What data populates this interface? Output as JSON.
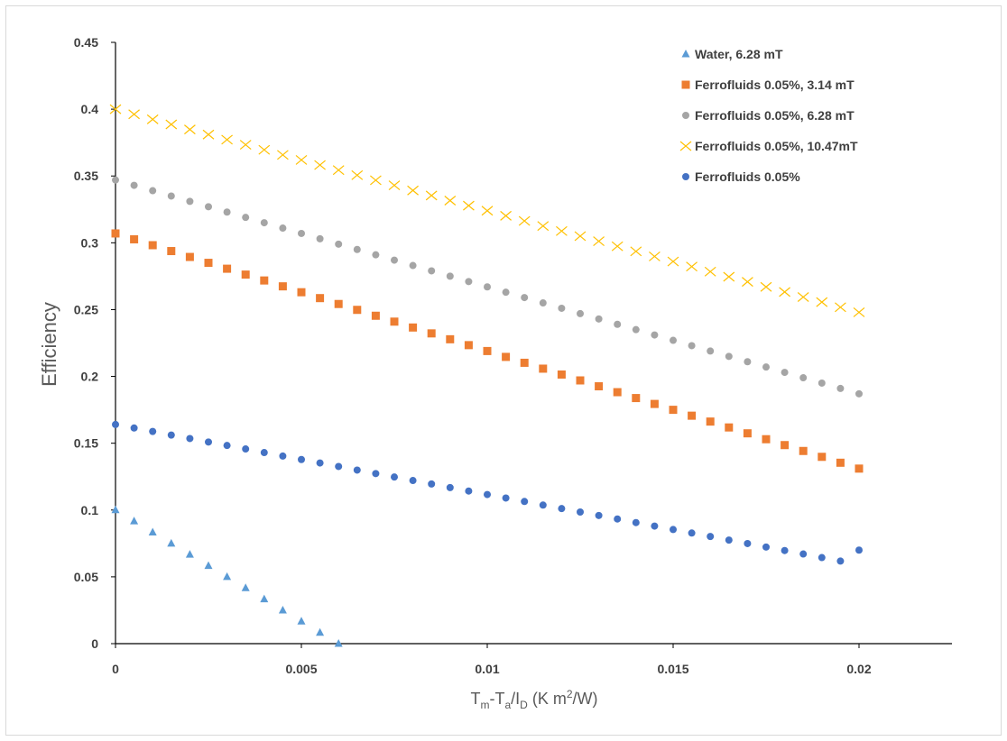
{
  "chart_data": {
    "type": "scatter",
    "title": "",
    "xlabel": {
      "main": "T",
      "sub1": "m",
      "mid": "-T",
      "sub2": "a",
      "mid2": "/I",
      "sub3": "D",
      "unit": " (K m",
      "sup": "2",
      "unit_end": "/W)"
    },
    "ylabel": "Efficiency",
    "xlim": [
      0,
      0.0225
    ],
    "ylim": [
      0,
      0.45
    ],
    "x_ticks": [
      0,
      0.005,
      0.01,
      0.015,
      0.02
    ],
    "x_tick_labels": [
      "0",
      "0.005",
      "0.01",
      "0.015",
      "0.02"
    ],
    "y_ticks": [
      0,
      0.05,
      0.1,
      0.15,
      0.2,
      0.25,
      0.3,
      0.35,
      0.4,
      0.45
    ],
    "y_tick_labels": [
      "0",
      "0.05",
      "0.1",
      "0.15",
      "0.2",
      "0.25",
      "0.3",
      "0.35",
      "0.4",
      "0.45"
    ],
    "grid": false,
    "legend_position": "top-right",
    "series": [
      {
        "name": "Water, 6.28 mT",
        "marker": "triangle",
        "color": "#5b9bd5",
        "x": [
          0,
          0.0005,
          0.001,
          0.0015,
          0.002,
          0.0025,
          0.003,
          0.0035,
          0.004,
          0.0045,
          0.005,
          0.0055,
          0.006
        ],
        "y": [
          0.1,
          0.0917,
          0.0833,
          0.075,
          0.0667,
          0.0583,
          0.05,
          0.0417,
          0.0333,
          0.025,
          0.0167,
          0.0083,
          0.0
        ]
      },
      {
        "name": "Ferrofluids 0.05%, 3.14 mT",
        "marker": "square",
        "color": "#ed7d31",
        "x": [
          0,
          0.0005,
          0.001,
          0.0015,
          0.002,
          0.0025,
          0.003,
          0.0035,
          0.004,
          0.0045,
          0.005,
          0.0055,
          0.006,
          0.0065,
          0.007,
          0.0075,
          0.008,
          0.0085,
          0.009,
          0.0095,
          0.01,
          0.0105,
          0.011,
          0.0115,
          0.012,
          0.0125,
          0.013,
          0.0135,
          0.014,
          0.0145,
          0.015,
          0.0155,
          0.016,
          0.0165,
          0.017,
          0.0175,
          0.018,
          0.0185,
          0.019,
          0.0195,
          0.02
        ],
        "y": [
          0.307,
          0.3026,
          0.2982,
          0.2938,
          0.2894,
          0.285,
          0.2806,
          0.2762,
          0.2718,
          0.2674,
          0.263,
          0.2586,
          0.2542,
          0.2498,
          0.2454,
          0.241,
          0.2366,
          0.2322,
          0.2278,
          0.2234,
          0.219,
          0.2146,
          0.2102,
          0.2058,
          0.2014,
          0.197,
          0.1926,
          0.1882,
          0.1838,
          0.1794,
          0.175,
          0.1706,
          0.1662,
          0.1618,
          0.1574,
          0.153,
          0.1486,
          0.1442,
          0.1398,
          0.1354,
          0.131
        ]
      },
      {
        "name": "Ferrofluids 0.05%, 6.28 mT",
        "marker": "circle",
        "color": "#a5a5a5",
        "x": [
          0,
          0.0005,
          0.001,
          0.0015,
          0.002,
          0.0025,
          0.003,
          0.0035,
          0.004,
          0.0045,
          0.005,
          0.0055,
          0.006,
          0.0065,
          0.007,
          0.0075,
          0.008,
          0.0085,
          0.009,
          0.0095,
          0.01,
          0.0105,
          0.011,
          0.0115,
          0.012,
          0.0125,
          0.013,
          0.0135,
          0.014,
          0.0145,
          0.015,
          0.0155,
          0.016,
          0.0165,
          0.017,
          0.0175,
          0.018,
          0.0185,
          0.019,
          0.0195,
          0.02
        ],
        "y": [
          0.347,
          0.343,
          0.339,
          0.335,
          0.331,
          0.327,
          0.323,
          0.319,
          0.315,
          0.311,
          0.307,
          0.303,
          0.299,
          0.295,
          0.291,
          0.287,
          0.283,
          0.279,
          0.275,
          0.271,
          0.267,
          0.263,
          0.259,
          0.255,
          0.251,
          0.247,
          0.243,
          0.239,
          0.235,
          0.231,
          0.227,
          0.223,
          0.219,
          0.215,
          0.211,
          0.207,
          0.203,
          0.199,
          0.195,
          0.191,
          0.187
        ]
      },
      {
        "name": "Ferrofluids 0.05%, 10.47mT",
        "marker": "x",
        "color": "#ffc000",
        "x": [
          0,
          0.0005,
          0.001,
          0.0015,
          0.002,
          0.0025,
          0.003,
          0.0035,
          0.004,
          0.0045,
          0.005,
          0.0055,
          0.006,
          0.0065,
          0.007,
          0.0075,
          0.008,
          0.0085,
          0.009,
          0.0095,
          0.01,
          0.0105,
          0.011,
          0.0115,
          0.012,
          0.0125,
          0.013,
          0.0135,
          0.014,
          0.0145,
          0.015,
          0.0155,
          0.016,
          0.0165,
          0.017,
          0.0175,
          0.018,
          0.0185,
          0.019,
          0.0195,
          0.02
        ],
        "y": [
          0.4,
          0.3962,
          0.3924,
          0.3886,
          0.3848,
          0.381,
          0.3772,
          0.3734,
          0.3696,
          0.3658,
          0.362,
          0.3582,
          0.3544,
          0.3506,
          0.3468,
          0.343,
          0.3392,
          0.3354,
          0.3316,
          0.3278,
          0.324,
          0.3202,
          0.3164,
          0.3126,
          0.3088,
          0.305,
          0.3012,
          0.2974,
          0.2936,
          0.2898,
          0.286,
          0.2822,
          0.2784,
          0.2746,
          0.2708,
          0.267,
          0.2632,
          0.2594,
          0.2556,
          0.2518,
          0.248
        ]
      },
      {
        "name": "Ferrofluids 0.05%",
        "marker": "circle",
        "color": "#4472c4",
        "x": [
          0,
          0.0005,
          0.001,
          0.0015,
          0.002,
          0.0025,
          0.003,
          0.0035,
          0.004,
          0.0045,
          0.005,
          0.0055,
          0.006,
          0.0065,
          0.007,
          0.0075,
          0.008,
          0.0085,
          0.009,
          0.0095,
          0.01,
          0.0105,
          0.011,
          0.0115,
          0.012,
          0.0125,
          0.013,
          0.0135,
          0.014,
          0.0145,
          0.015,
          0.0155,
          0.016,
          0.0165,
          0.017,
          0.0175,
          0.018,
          0.0185,
          0.019,
          0.0195,
          0.02
        ],
        "y": [
          0.164,
          0.1614,
          0.1588,
          0.1561,
          0.1535,
          0.1509,
          0.1483,
          0.1457,
          0.143,
          0.1404,
          0.1378,
          0.1352,
          0.1326,
          0.1299,
          0.1273,
          0.1247,
          0.1221,
          0.1195,
          0.1168,
          0.1142,
          0.1116,
          0.109,
          0.1064,
          0.1037,
          0.1011,
          0.0985,
          0.0959,
          0.0933,
          0.0906,
          0.088,
          0.0854,
          0.0828,
          0.0802,
          0.0775,
          0.0749,
          0.0723,
          0.0697,
          0.0671,
          0.0644,
          0.0618,
          0.07
        ]
      }
    ]
  }
}
